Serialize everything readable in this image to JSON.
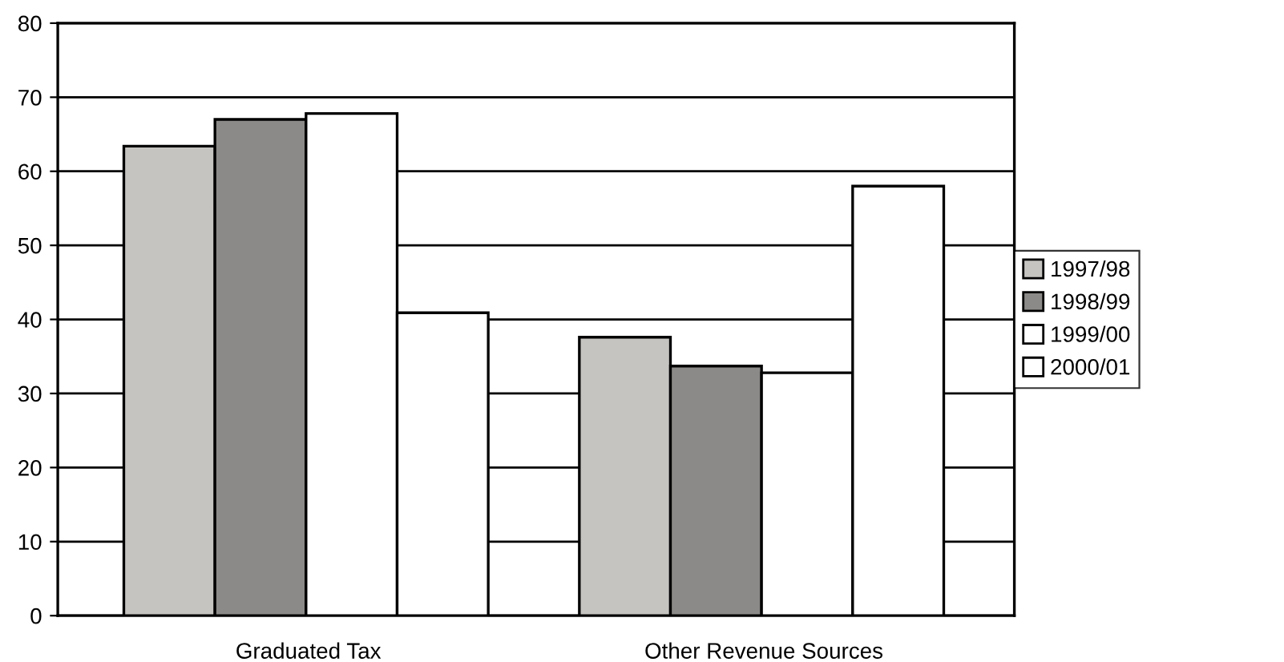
{
  "chart_data": {
    "type": "bar",
    "categories": [
      "Graduated Tax",
      "Other Revenue Sources"
    ],
    "series": [
      {
        "name": "1997/98",
        "color": "#c6c4c1",
        "values": [
          63.4,
          37.6
        ]
      },
      {
        "name": "1998/99",
        "color": "#8c8a88",
        "values": [
          67,
          33.7
        ]
      },
      {
        "name": "1999/00",
        "color": "#ffffff",
        "values": [
          67.8,
          32.8
        ]
      },
      {
        "name": "2000/01",
        "color": "#ffffff",
        "values": [
          40.9,
          58
        ]
      }
    ],
    "ylim": [
      0,
      80
    ],
    "yticks": [
      0,
      10,
      20,
      30,
      40,
      50,
      60,
      70,
      80
    ],
    "grid": "y",
    "legend": "right"
  }
}
